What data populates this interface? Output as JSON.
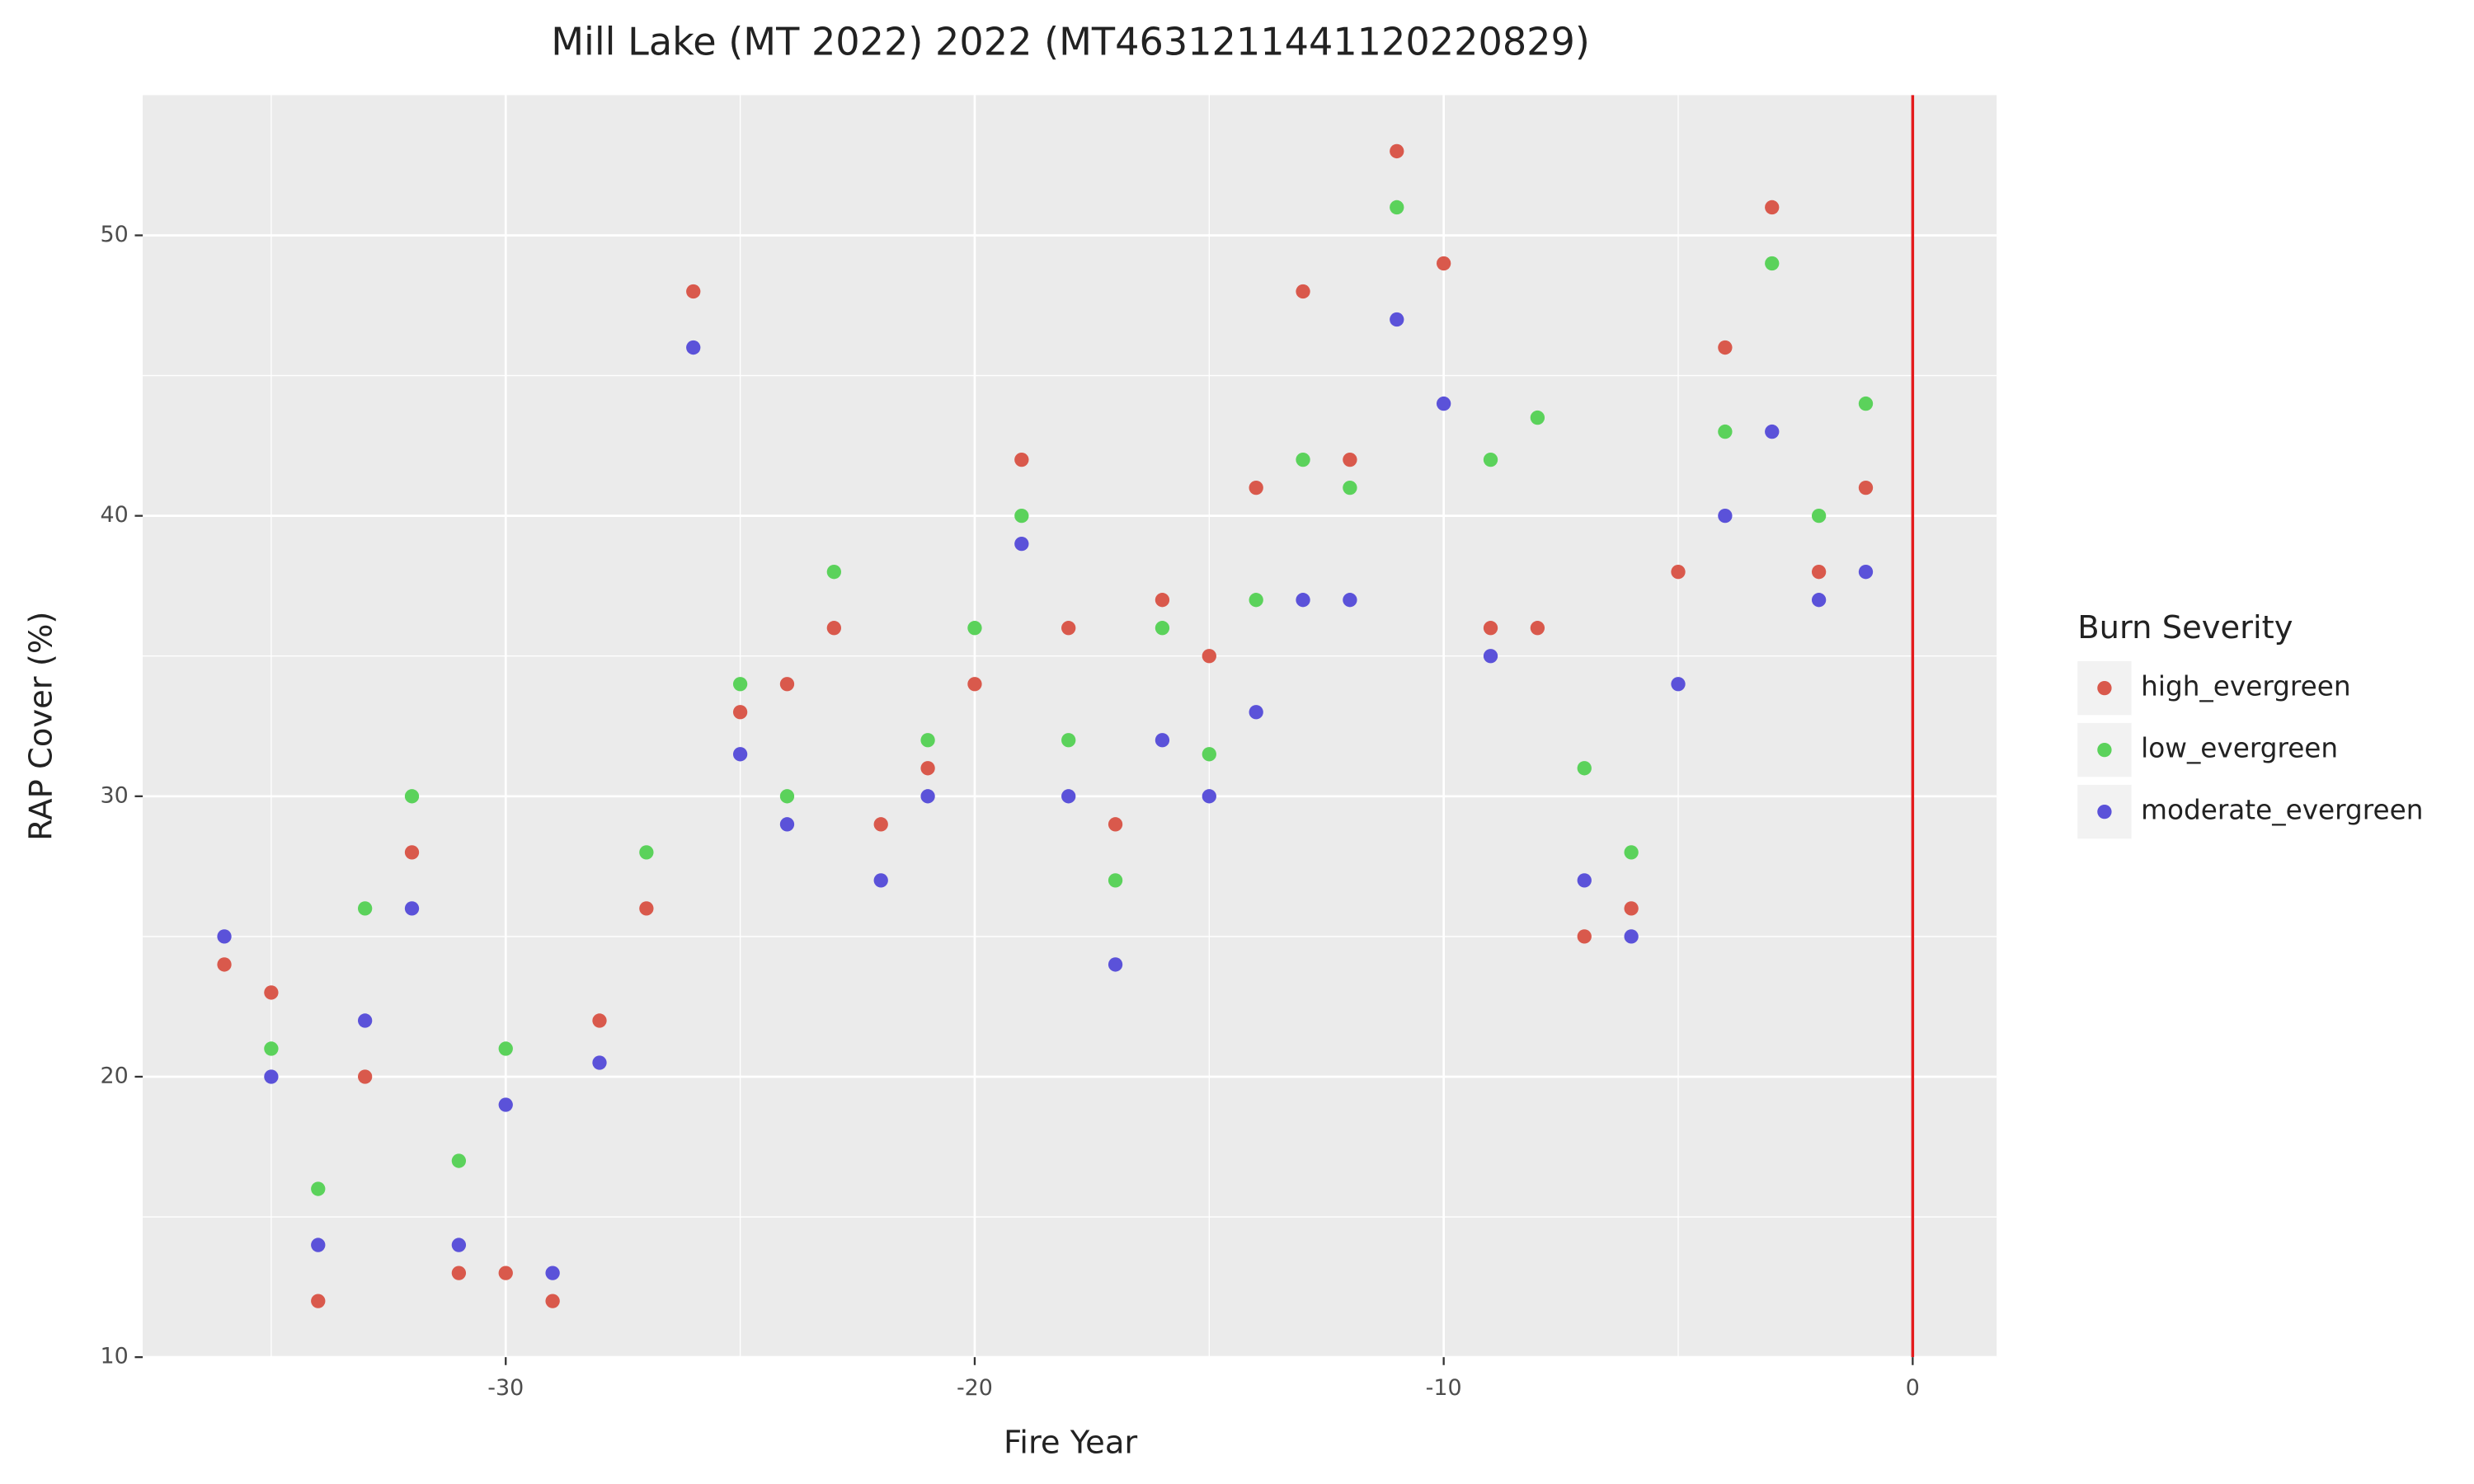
{
  "chart_data": {
    "type": "scatter",
    "title": "Mill Lake (MT 2022) 2022 (MT4631211441120220829)",
    "x_label": "Fire Year",
    "y_label": "RAP Cover (%)",
    "legend_title": "Burn Severity",
    "legend_position": "right",
    "xlim": [
      -37.74,
      1.79
    ],
    "ylim": [
      10,
      55
    ],
    "xticks": [
      -30,
      -20,
      -10,
      0
    ],
    "yticks": [
      10,
      20,
      30,
      40,
      50
    ],
    "x_minor_grid": [
      -35,
      -25,
      -15,
      -5
    ],
    "y_minor_grid": [
      15,
      25,
      35,
      45
    ],
    "grid": true,
    "vline": 0,
    "vline_color": "#e41a1c",
    "series": [
      {
        "name": "high_evergreen",
        "color": "#d9594c",
        "x": [
          -36,
          -35,
          -34,
          -33,
          -32,
          -31,
          -30,
          -29,
          -28,
          -27,
          -26,
          -25,
          -24,
          -23,
          -22,
          -21,
          -20,
          -19,
          -18,
          -17,
          -16,
          -15,
          -14,
          -13,
          -12,
          -11,
          -10,
          -9,
          -8,
          -7,
          -6,
          -5,
          -4,
          -3,
          -2,
          -1
        ],
        "values": [
          24,
          23,
          12,
          20,
          28,
          13,
          13,
          12,
          22,
          26,
          48,
          33,
          34,
          36,
          29,
          31,
          34,
          42,
          36,
          29,
          37,
          35,
          41,
          48,
          42,
          53,
          49,
          36,
          36,
          25,
          26,
          38,
          46,
          51,
          38,
          41
        ]
      },
      {
        "name": "low_evergreen",
        "color": "#5bd25b",
        "x": [
          -35,
          -34,
          -33,
          -32,
          -31,
          -30,
          -27,
          -25,
          -24,
          -23,
          -21,
          -20,
          -19,
          -18,
          -17,
          -16,
          -15,
          -14,
          -13,
          -12,
          -11,
          -9,
          -8,
          -7,
          -6,
          -4,
          -3,
          -2,
          -1
        ],
        "values": [
          21,
          16,
          26,
          30,
          17,
          21,
          28,
          34,
          30,
          38,
          32,
          36,
          40,
          32,
          27,
          36,
          31.5,
          37,
          42,
          41,
          51,
          42,
          43.5,
          31,
          28,
          43,
          49,
          40,
          44
        ]
      },
      {
        "name": "moderate_evergreen",
        "color": "#5b52d9",
        "x": [
          -36,
          -35,
          -34,
          -33,
          -32,
          -31,
          -30,
          -29,
          -28,
          -26,
          -25,
          -24,
          -22,
          -21,
          -19,
          -18,
          -17,
          -16,
          -15,
          -14,
          -13,
          -12,
          -11,
          -10,
          -9,
          -7,
          -6,
          -5,
          -4,
          -3,
          -2,
          -1
        ],
        "values": [
          25,
          20,
          14,
          22,
          26,
          14,
          19,
          13,
          20.5,
          46,
          31.5,
          29,
          27,
          30,
          39,
          30,
          24,
          32,
          30,
          33,
          37,
          37,
          47,
          44,
          35,
          27,
          25,
          34,
          40,
          43,
          37,
          38
        ]
      }
    ]
  }
}
